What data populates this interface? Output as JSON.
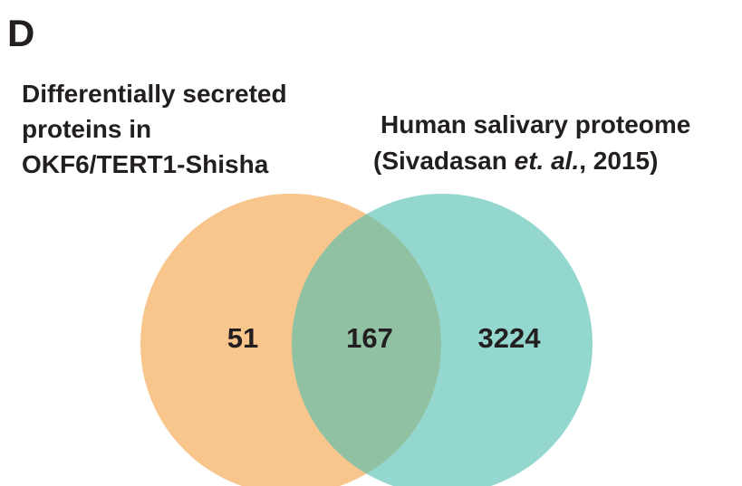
{
  "panel_label": "D",
  "chart_data": {
    "type": "venn",
    "sets": [
      {
        "name_lines": [
          [
            "Differentially secreted"
          ],
          [
            "proteins in"
          ],
          [
            "OKF6/TERT1-Shisha"
          ]
        ],
        "color": "#f8c58d",
        "value": 51
      },
      {
        "name_lines": [
          [
            "Human salivary proteome"
          ],
          [
            "(Sivadasan ",
            "et. al.",
            ", 2015)"
          ]
        ],
        "color": "#52beb1",
        "value": 3224
      }
    ],
    "intersection": 167
  }
}
